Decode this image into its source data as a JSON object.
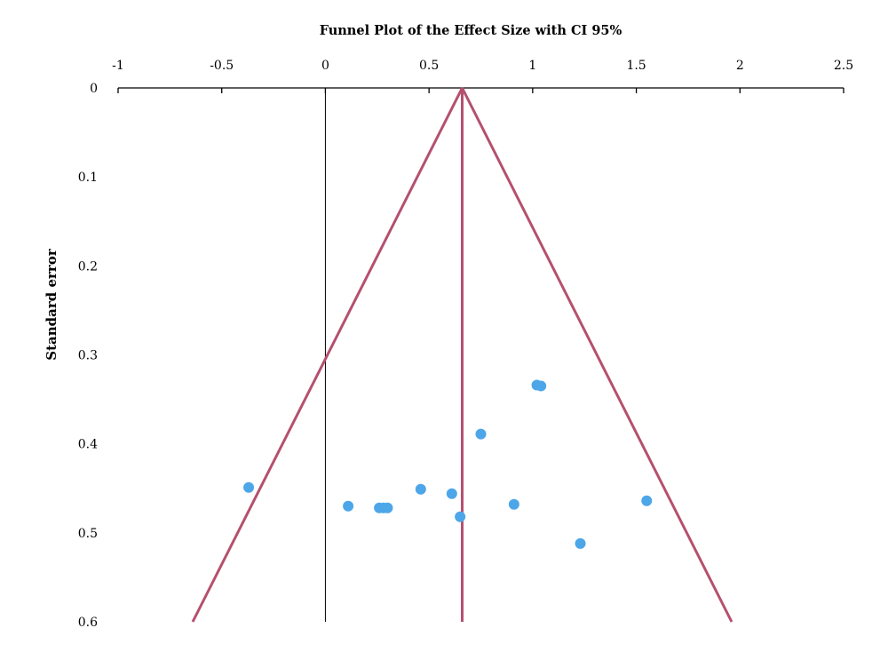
{
  "chart_data": {
    "type": "scatter",
    "title": "Funnel Plot of the Effect Size with CI 95%",
    "xlabel": "",
    "ylabel": "Standard error",
    "xlim": [
      -1,
      2.5
    ],
    "ylim": [
      0,
      0.6
    ],
    "y_inverted": true,
    "x_axis_position": "top",
    "x_ticks": [
      "-1",
      "-0.5",
      "0",
      "0.5",
      "1",
      "1.5",
      "2",
      "2.5"
    ],
    "y_ticks": [
      "0",
      "0.1",
      "0.2",
      "0.3",
      "0.4",
      "0.5",
      "0.6"
    ],
    "grid": false,
    "legend": "none",
    "pooled_effect": 0.66,
    "null_line_x": 0,
    "funnel_lines": [
      {
        "name": "lower-ci",
        "points": [
          [
            0.66,
            0
          ],
          [
            -0.64,
            0.6
          ]
        ]
      },
      {
        "name": "upper-ci",
        "points": [
          [
            0.66,
            0
          ],
          [
            1.96,
            0.6
          ]
        ]
      }
    ],
    "points": [
      {
        "x": 1.02,
        "y": 0.334
      },
      {
        "x": 1.04,
        "y": 0.335
      },
      {
        "x": 0.75,
        "y": 0.389
      },
      {
        "x": -0.37,
        "y": 0.449
      },
      {
        "x": 0.46,
        "y": 0.451
      },
      {
        "x": 0.61,
        "y": 0.456
      },
      {
        "x": 1.55,
        "y": 0.464
      },
      {
        "x": 0.91,
        "y": 0.468
      },
      {
        "x": 0.11,
        "y": 0.47
      },
      {
        "x": 0.26,
        "y": 0.472
      },
      {
        "x": 0.28,
        "y": 0.472
      },
      {
        "x": 0.3,
        "y": 0.472
      },
      {
        "x": 0.65,
        "y": 0.482
      },
      {
        "x": 1.23,
        "y": 0.512
      }
    ],
    "colors": {
      "points": "#4da6e8",
      "funnel": "#b5506e",
      "axis": "#000000"
    }
  }
}
